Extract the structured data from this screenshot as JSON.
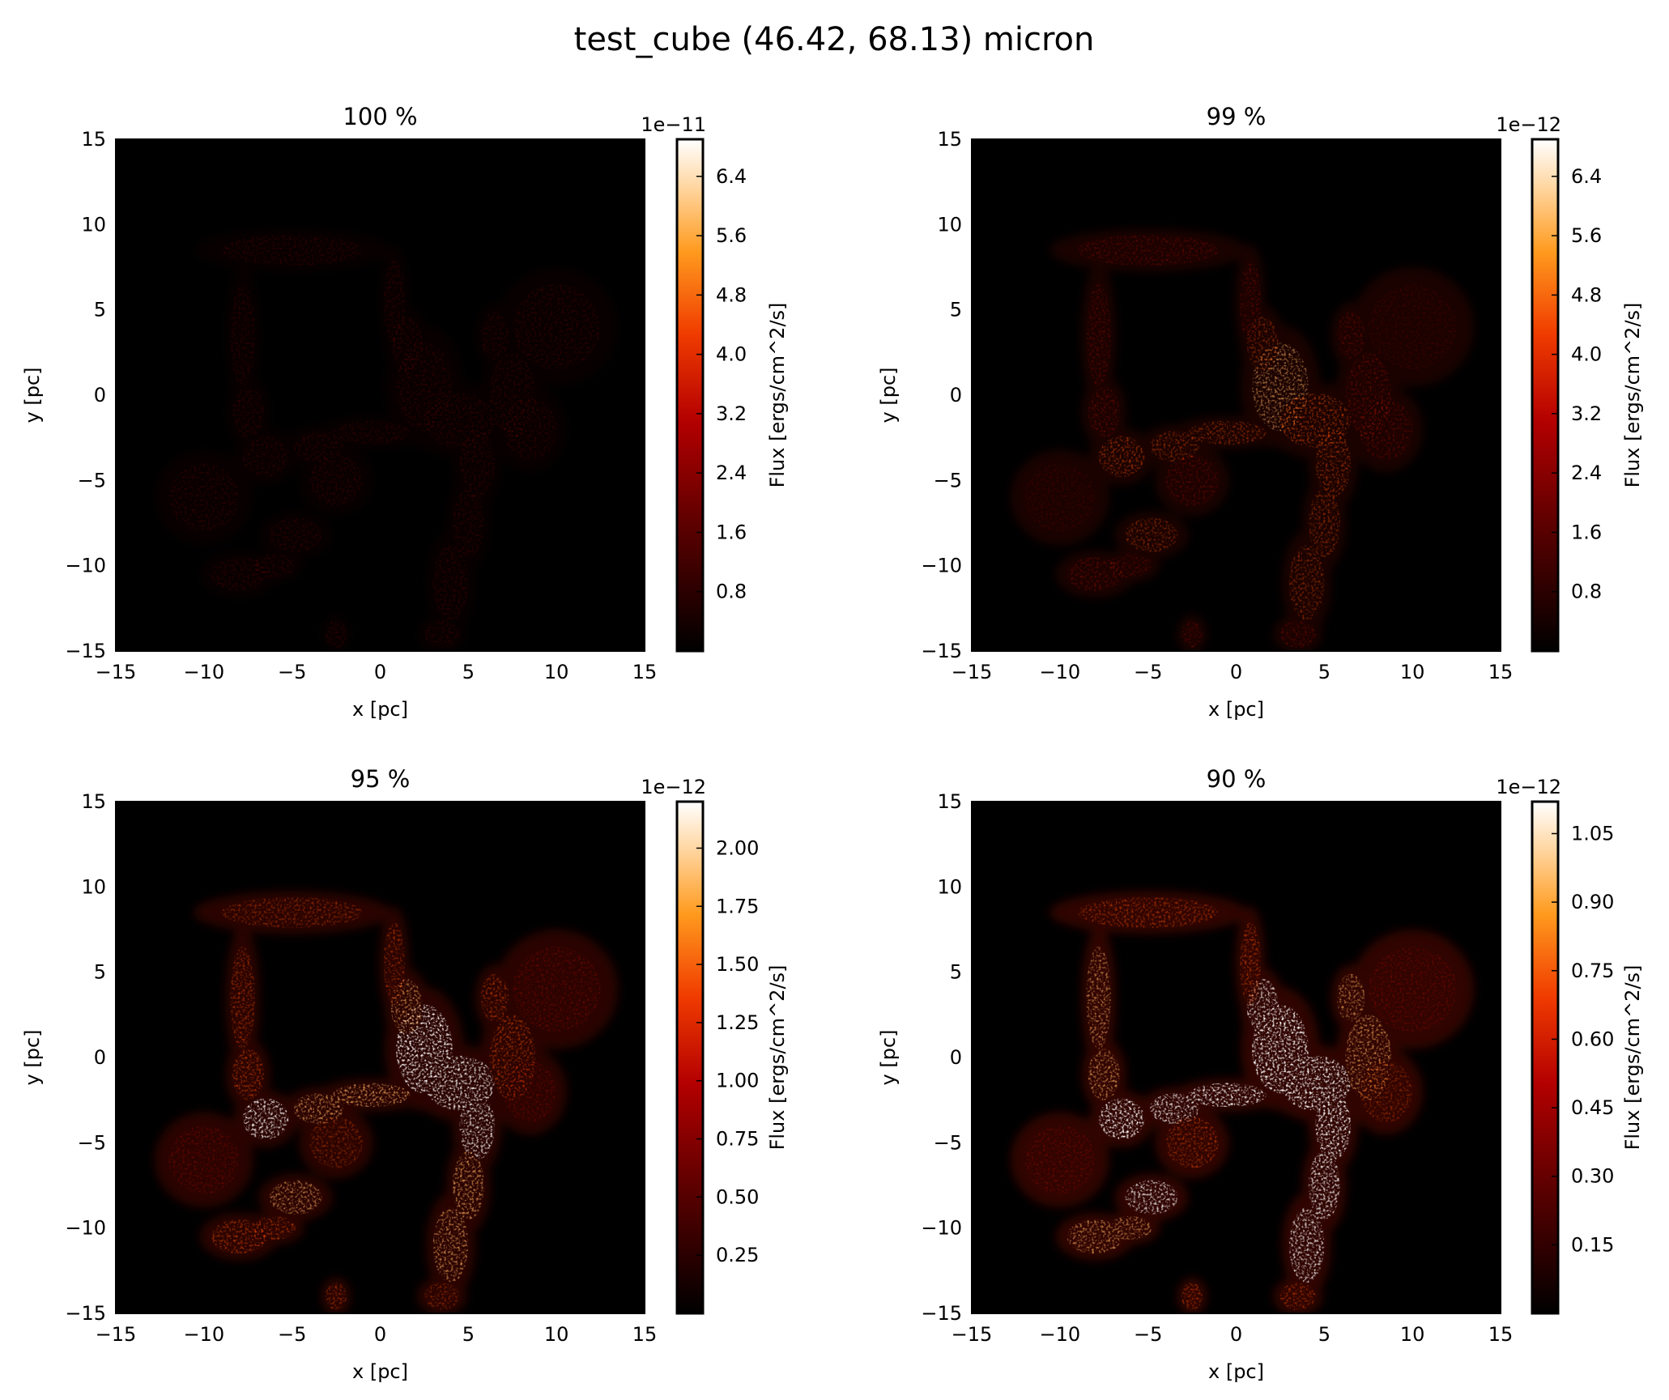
{
  "figure": {
    "title": "test_cube (46.42, 68.13) micron"
  },
  "chart_data": [
    {
      "type": "heatmap",
      "title": "100 %",
      "xlabel": "x [pc]",
      "ylabel": "y [pc]",
      "xlim": [
        -15,
        15
      ],
      "ylim": [
        -15,
        15
      ],
      "x_ticks": [
        "−15",
        "−10",
        "−5",
        "0",
        "5",
        "10",
        "15"
      ],
      "y_ticks": [
        "15",
        "10",
        "5",
        "0",
        "−5",
        "−10",
        "−15"
      ],
      "colorbar": {
        "label": "Flux [ergs/cm^2/s]",
        "offset": "1e−11",
        "ticks": [
          "6.4",
          "5.6",
          "4.8",
          "4.0",
          "3.2",
          "2.4",
          "1.6",
          "0.8"
        ],
        "tick_values": [
          6.4,
          5.6,
          4.8,
          4.0,
          3.2,
          2.4,
          1.6,
          0.8
        ],
        "range": [
          0.0,
          6.9
        ]
      },
      "colormap": "gist_heat",
      "intensity": 0.18
    },
    {
      "type": "heatmap",
      "title": "99 %",
      "xlabel": "x [pc]",
      "ylabel": "y [pc]",
      "xlim": [
        -15,
        15
      ],
      "ylim": [
        -15,
        15
      ],
      "x_ticks": [
        "−15",
        "−10",
        "−5",
        "0",
        "5",
        "10",
        "15"
      ],
      "y_ticks": [
        "15",
        "10",
        "5",
        "0",
        "−5",
        "−10",
        "−15"
      ],
      "colorbar": {
        "label": "Flux [ergs/cm^2/s]",
        "offset": "1e−12",
        "ticks": [
          "6.4",
          "5.6",
          "4.8",
          "4.0",
          "3.2",
          "2.4",
          "1.6",
          "0.8"
        ],
        "tick_values": [
          6.4,
          5.6,
          4.8,
          4.0,
          3.2,
          2.4,
          1.6,
          0.8
        ],
        "range": [
          0.0,
          6.9
        ]
      },
      "colormap": "gist_heat",
      "intensity": 0.55
    },
    {
      "type": "heatmap",
      "title": "95 %",
      "xlabel": "x [pc]",
      "ylabel": "y [pc]",
      "xlim": [
        -15,
        15
      ],
      "ylim": [
        -15,
        15
      ],
      "x_ticks": [
        "−15",
        "−10",
        "−5",
        "0",
        "5",
        "10",
        "15"
      ],
      "y_ticks": [
        "15",
        "10",
        "5",
        "0",
        "−5",
        "−10",
        "−15"
      ],
      "colorbar": {
        "label": "Flux [ergs/cm^2/s]",
        "offset": "1e−12",
        "ticks": [
          "2.00",
          "1.75",
          "1.50",
          "1.25",
          "1.00",
          "0.75",
          "0.50",
          "0.25"
        ],
        "tick_values": [
          2.0,
          1.75,
          1.5,
          1.25,
          1.0,
          0.75,
          0.5,
          0.25
        ],
        "range": [
          0.0,
          2.2
        ]
      },
      "colormap": "gist_heat",
      "intensity": 0.85
    },
    {
      "type": "heatmap",
      "title": "90 %",
      "xlabel": "x [pc]",
      "ylabel": "y [pc]",
      "xlim": [
        -15,
        15
      ],
      "ylim": [
        -15,
        15
      ],
      "x_ticks": [
        "−15",
        "−10",
        "−5",
        "0",
        "5",
        "10",
        "15"
      ],
      "y_ticks": [
        "15",
        "10",
        "5",
        "0",
        "−5",
        "−10",
        "−15"
      ],
      "colorbar": {
        "label": "Flux [ergs/cm^2/s]",
        "offset": "1e−12",
        "ticks": [
          "1.05",
          "0.90",
          "0.75",
          "0.60",
          "0.45",
          "0.30",
          "0.15"
        ],
        "tick_values": [
          1.05,
          0.9,
          0.75,
          0.6,
          0.45,
          0.3,
          0.15
        ],
        "range": [
          0.0,
          1.12
        ]
      },
      "colormap": "gist_heat",
      "intensity": 1.0
    }
  ]
}
